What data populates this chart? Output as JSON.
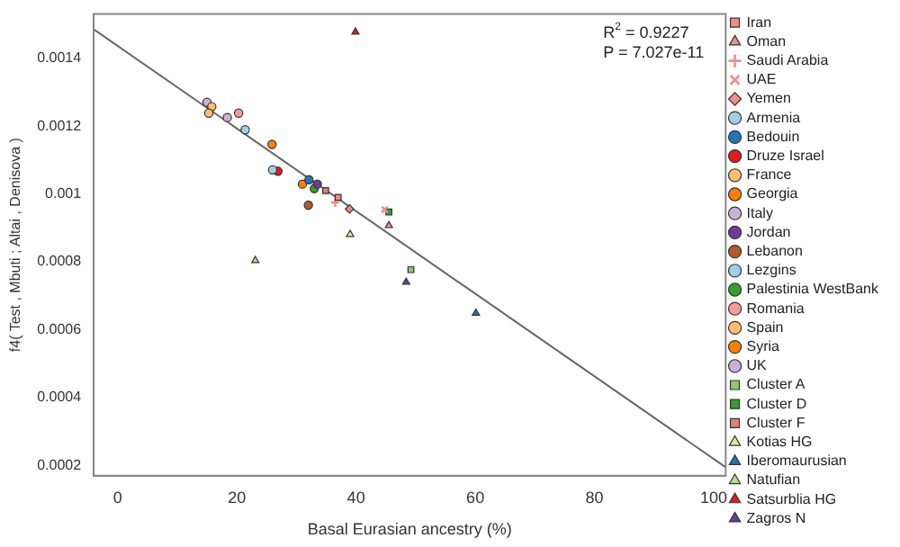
{
  "chart_data": {
    "type": "scatter",
    "xlabel": "Basal Eurasian ancestry (%)",
    "ylabel": "f4( Test , Mbuti ; Altai , Denisova )",
    "xlim": [
      -4,
      102
    ],
    "xticks": [
      0,
      20,
      40,
      60,
      80,
      100
    ],
    "ylim": [
      0.00017,
      0.00153
    ],
    "yticks": [
      0.0002,
      0.0004,
      0.0006,
      0.0008,
      0.001,
      0.0012,
      0.0014
    ],
    "grid": false,
    "legend": "right",
    "annotations": [
      "R$^{2}$ = 0.9227",
      "P = 7.027e-11"
    ],
    "series": [
      {
        "name": "Iran",
        "color": "#f28b8b",
        "marker": "square",
        "x": [
          37.0
        ],
        "values": [
          0.00099
        ]
      },
      {
        "name": "Oman",
        "color": "#f28b8b",
        "marker": "triangle",
        "x": [
          45.5
        ],
        "values": [
          0.000907
        ]
      },
      {
        "name": "Saudi Arabia",
        "color": "#f28b8b",
        "marker": "cross",
        "x": [
          36.5
        ],
        "values": [
          0.000975
        ]
      },
      {
        "name": "UAE",
        "color": "#f28b8b",
        "marker": "x",
        "x": [
          44.8
        ],
        "values": [
          0.000954
        ]
      },
      {
        "name": "Yemen",
        "color": "#f28b8b",
        "marker": "diamond",
        "x": [
          38.9
        ],
        "values": [
          0.000956
        ]
      },
      {
        "name": "Armenia",
        "color": "#a6cee3",
        "marker": "circle",
        "x": [
          26.0
        ],
        "values": [
          0.001071
        ]
      },
      {
        "name": "Bedouin",
        "color": "#1f78b4",
        "marker": "circle",
        "x": [
          32.1
        ],
        "values": [
          0.001042
        ]
      },
      {
        "name": "Druze Israel",
        "color": "#e31a1c",
        "marker": "circle",
        "x": [
          26.9
        ],
        "values": [
          0.001067
        ]
      },
      {
        "name": "France",
        "color": "#fdbf6f",
        "marker": "circle",
        "x": [
          15.3
        ],
        "values": [
          0.001238
        ]
      },
      {
        "name": "Georgia",
        "color": "#ff7f00",
        "marker": "circle",
        "x": [
          25.9
        ],
        "values": [
          0.001146
        ]
      },
      {
        "name": "Italy",
        "color": "#cab2d6",
        "marker": "circle",
        "x": [
          18.4
        ],
        "values": [
          0.001225
        ]
      },
      {
        "name": "Jordan",
        "color": "#6a3d9a",
        "marker": "circle",
        "x": [
          33.5
        ],
        "values": [
          0.001029
        ]
      },
      {
        "name": "Lebanon",
        "color": "#b15928",
        "marker": "circle",
        "x": [
          32.0
        ],
        "values": [
          0.000967
        ]
      },
      {
        "name": "Lezgins",
        "color": "#a6cee3",
        "marker": "circle",
        "x": [
          21.4
        ],
        "values": [
          0.001189
        ]
      },
      {
        "name": "Palestinia WestBank",
        "color": "#33a02c",
        "marker": "circle",
        "x": [
          33.0
        ],
        "values": [
          0.001016
        ]
      },
      {
        "name": "Romania",
        "color": "#fb9a99",
        "marker": "circle",
        "x": [
          20.3
        ],
        "values": [
          0.001238
        ]
      },
      {
        "name": "Spain",
        "color": "#fdbf6f",
        "marker": "circle",
        "x": [
          15.8
        ],
        "values": [
          0.001257
        ]
      },
      {
        "name": "Syria",
        "color": "#ff7f00",
        "marker": "circle",
        "x": [
          31.0
        ],
        "values": [
          0.001029
        ]
      },
      {
        "name": "UK",
        "color": "#cab2d6",
        "marker": "circle",
        "x": [
          15.0
        ],
        "values": [
          0.00127
        ]
      },
      {
        "name": "Cluster A",
        "color": "#8cc870",
        "marker": "square",
        "x": [
          49.2
        ],
        "values": [
          0.000777
        ]
      },
      {
        "name": "Cluster D",
        "color": "#33a02c",
        "marker": "square",
        "x": [
          45.5
        ],
        "values": [
          0.000947
        ]
      },
      {
        "name": "Cluster F",
        "color": "#d98080",
        "marker": "square",
        "x": [
          34.9
        ],
        "values": [
          0.00101
        ]
      },
      {
        "name": "Kotias HG",
        "color": "#e8e88a",
        "marker": "triangle",
        "x": [
          39.0
        ],
        "values": [
          0.000881
        ]
      },
      {
        "name": "Iberomaurusian",
        "color": "#1f78b4",
        "marker": "triangle",
        "x": [
          60.1
        ],
        "values": [
          0.000649
        ]
      },
      {
        "name": "Natufian",
        "color": "#b2df8a",
        "marker": "triangle",
        "x": [
          23.1
        ],
        "values": [
          0.000804
        ]
      },
      {
        "name": "Satsurblia HG",
        "color": "#e31a1c",
        "marker": "triangle",
        "x": [
          39.9
        ],
        "values": [
          0.001477
        ]
      },
      {
        "name": "Zagros N",
        "color": "#6a3d9a",
        "marker": "triangle",
        "x": [
          48.4
        ],
        "values": [
          0.00074
        ]
      },
      {
        "type": "line",
        "color": "#666666",
        "marker": "none",
        "x": [
          -4,
          102
        ],
        "values": [
          0.001485,
          0.000195
        ]
      }
    ]
  }
}
